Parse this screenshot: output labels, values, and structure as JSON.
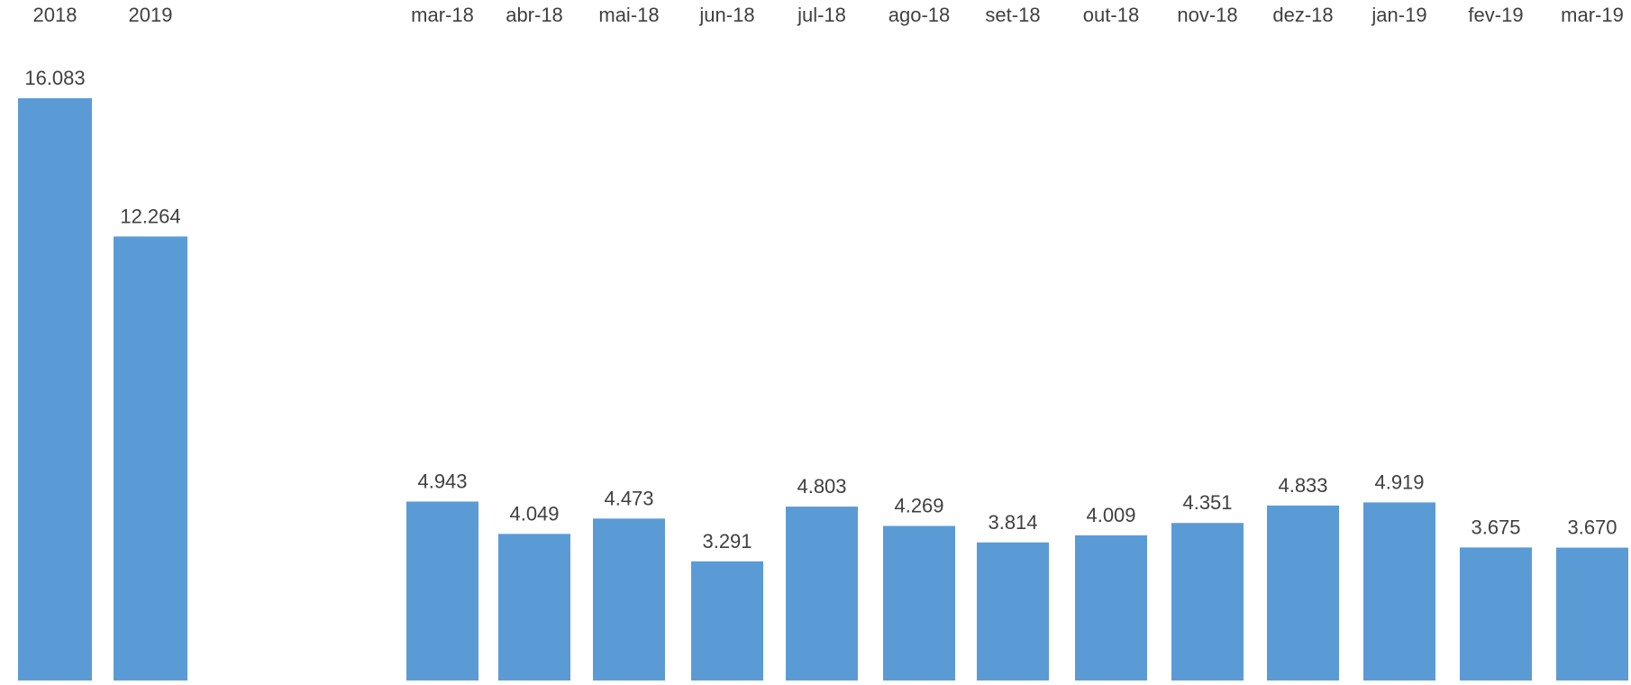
{
  "chart_data": [
    {
      "type": "bar",
      "categories": [
        "2018",
        "2019"
      ],
      "values": [
        16083,
        12264
      ],
      "value_labels": [
        "16.083",
        "12.264"
      ],
      "title": "",
      "xlabel": "",
      "ylabel": "",
      "ylim": [
        0,
        17000
      ],
      "grid": false,
      "x_axis_position": "top",
      "color": "#5B9BD5"
    },
    {
      "type": "bar",
      "categories": [
        "mar-18",
        "abr-18",
        "mai-18",
        "jun-18",
        "jul-18",
        "ago-18",
        "set-18",
        "out-18",
        "nov-18",
        "dez-18",
        "jan-19",
        "fev-19",
        "mar-19"
      ],
      "values": [
        4943,
        4049,
        4473,
        3291,
        4803,
        4269,
        3814,
        4009,
        4351,
        4833,
        4919,
        3675,
        3670
      ],
      "value_labels": [
        "4.943",
        "4.049",
        "4.473",
        "3.291",
        "4.803",
        "4.269",
        "3.814",
        "4.009",
        "4.351",
        "4.833",
        "4.919",
        "3.675",
        "3.670"
      ],
      "title": "",
      "xlabel": "",
      "ylabel": "",
      "ylim": [
        0,
        17000
      ],
      "grid": false,
      "x_axis_position": "top",
      "color": "#5B9BD5"
    }
  ]
}
